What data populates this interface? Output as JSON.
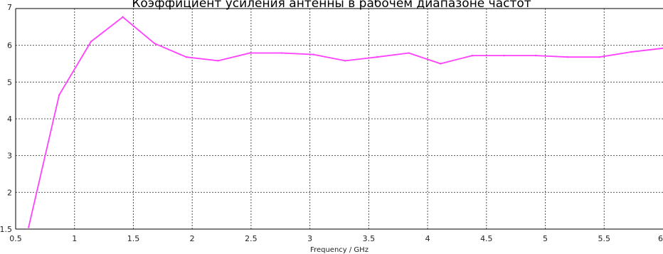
{
  "chart_data": {
    "type": "line",
    "title": "Коэффициент усиления антенны в рабочем диапазоне частот",
    "xlabel": "Frequency / GHz",
    "ylabel": "",
    "xlim": [
      0.5,
      6
    ],
    "ylim": [
      1,
      7
    ],
    "x_ticks": [
      "0.5",
      "1",
      "1.5",
      "2",
      "2.5",
      "3",
      "3.5",
      "4",
      "4.5",
      "5",
      "5.5",
      "6"
    ],
    "y_ticks": [
      "1.5",
      "2",
      "3",
      "4",
      "5",
      "6",
      "7"
    ],
    "grid": true,
    "series": [
      {
        "color": "#ff40ff",
        "x": [
          0.61,
          0.87,
          1.14,
          1.41,
          1.68,
          1.95,
          2.22,
          2.49,
          2.76,
          3.03,
          3.3,
          3.57,
          3.84,
          4.11,
          4.38,
          4.65,
          4.92,
          5.19,
          5.46,
          5.73,
          6.0
        ],
        "y": [
          1.05,
          4.65,
          6.1,
          6.77,
          6.05,
          5.68,
          5.58,
          5.79,
          5.79,
          5.75,
          5.58,
          5.68,
          5.79,
          5.5,
          5.72,
          5.72,
          5.72,
          5.68,
          5.68,
          5.82,
          5.92
        ]
      }
    ]
  }
}
